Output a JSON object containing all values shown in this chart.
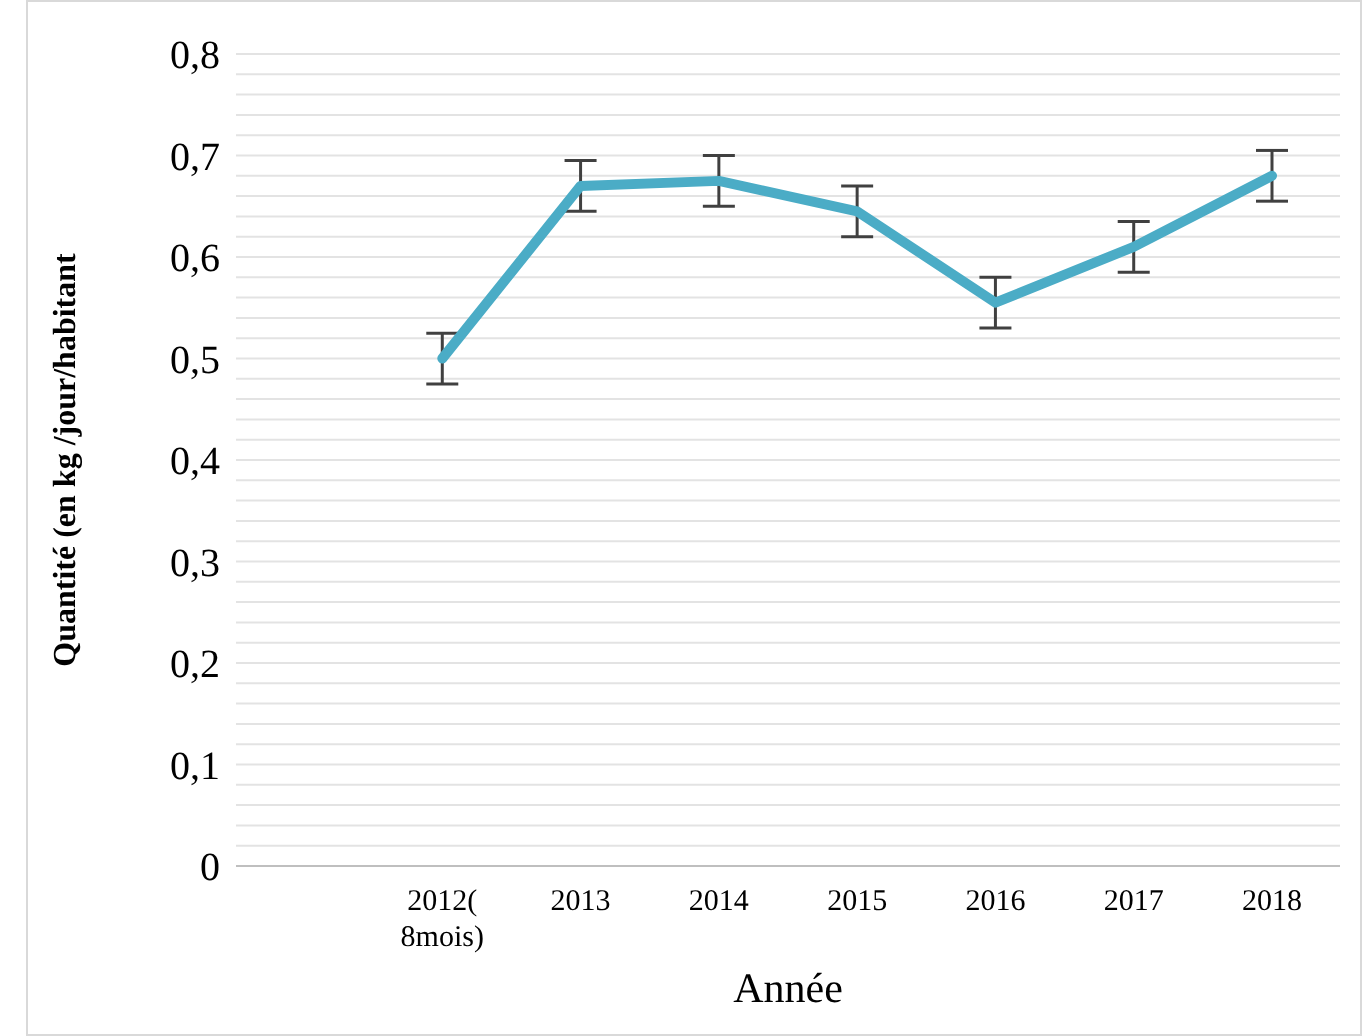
{
  "chart_data": {
    "type": "line",
    "xlabel": "Année",
    "ylabel": "Quantité (en kg /jour/habitant",
    "categories": [
      null,
      "2012(\n8mois)",
      "2013",
      "2014",
      "2015",
      "2016",
      "2017",
      "2018"
    ],
    "series": [
      {
        "color": "#4bacc6",
        "values": [
          null,
          0.5,
          0.67,
          0.675,
          0.645,
          0.555,
          0.61,
          0.68
        ],
        "errors": [
          null,
          0.025,
          0.025,
          0.025,
          0.025,
          0.025,
          0.025,
          0.025
        ]
      }
    ],
    "ylim": [
      0,
      0.8
    ],
    "yticks": [
      {
        "value": 0,
        "label": "0"
      },
      {
        "value": 0.02,
        "label": null
      },
      {
        "value": 0.04,
        "label": null
      },
      {
        "value": 0.06,
        "label": null
      },
      {
        "value": 0.08,
        "label": null
      },
      {
        "value": 0.1,
        "label": "0,1"
      },
      {
        "value": 0.12,
        "label": null
      },
      {
        "value": 0.14,
        "label": null
      },
      {
        "value": 0.16,
        "label": null
      },
      {
        "value": 0.18,
        "label": null
      },
      {
        "value": 0.2,
        "label": "0,2"
      },
      {
        "value": 0.22,
        "label": null
      },
      {
        "value": 0.24,
        "label": null
      },
      {
        "value": 0.26,
        "label": null
      },
      {
        "value": 0.28,
        "label": null
      },
      {
        "value": 0.3,
        "label": "0,3"
      },
      {
        "value": 0.32,
        "label": null
      },
      {
        "value": 0.34,
        "label": null
      },
      {
        "value": 0.36,
        "label": null
      },
      {
        "value": 0.38,
        "label": null
      },
      {
        "value": 0.4,
        "label": "0,4"
      },
      {
        "value": 0.42,
        "label": null
      },
      {
        "value": 0.44,
        "label": null
      },
      {
        "value": 0.46,
        "label": null
      },
      {
        "value": 0.48,
        "label": null
      },
      {
        "value": 0.5,
        "label": "0,5"
      },
      {
        "value": 0.52,
        "label": null
      },
      {
        "value": 0.54,
        "label": null
      },
      {
        "value": 0.56,
        "label": null
      },
      {
        "value": 0.58,
        "label": null
      },
      {
        "value": 0.6,
        "label": "0,6"
      },
      {
        "value": 0.62,
        "label": null
      },
      {
        "value": 0.64,
        "label": null
      },
      {
        "value": 0.66,
        "label": null
      },
      {
        "value": 0.68,
        "label": null
      },
      {
        "value": 0.7,
        "label": "0,7"
      },
      {
        "value": 0.72,
        "label": null
      },
      {
        "value": 0.74,
        "label": null
      },
      {
        "value": 0.76,
        "label": null
      },
      {
        "value": 0.78,
        "label": null
      },
      {
        "value": 0.8,
        "label": "0,8"
      }
    ],
    "grid": "y",
    "legend": false,
    "marker": "none",
    "line_style": "solid"
  }
}
